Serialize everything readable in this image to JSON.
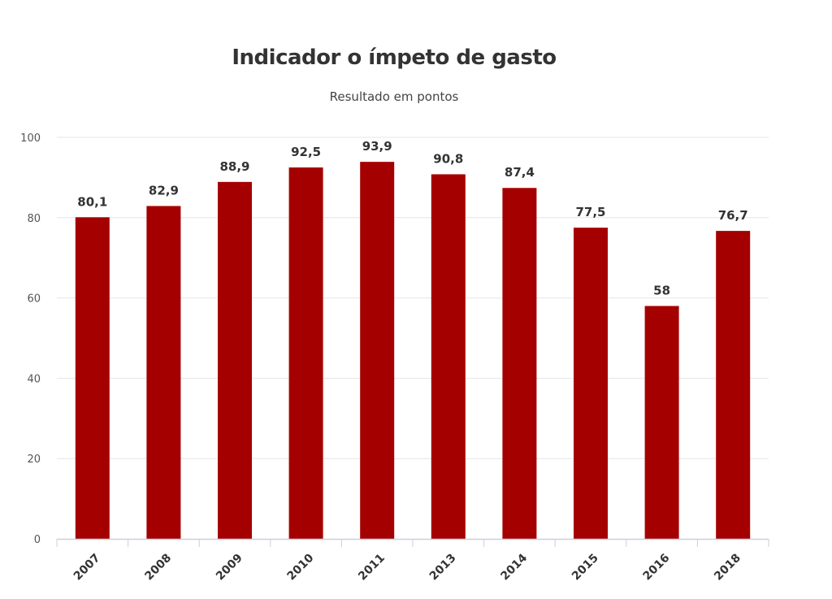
{
  "chart_data": {
    "type": "bar",
    "title": "Indicador o ímpeto de gasto",
    "subtitle": "Resultado em pontos",
    "categories": [
      "2007",
      "2008",
      "2009",
      "2010",
      "2011",
      "2013",
      "2014",
      "2015",
      "2016",
      "2018"
    ],
    "values": [
      80.1,
      82.9,
      88.9,
      92.5,
      93.9,
      90.8,
      87.4,
      77.5,
      58,
      76.7
    ],
    "value_labels": [
      "80,1",
      "82,9",
      "88,9",
      "92,5",
      "93,9",
      "90,8",
      "87,4",
      "77,5",
      "58",
      "76,7"
    ],
    "y_ticks": [
      0,
      20,
      40,
      60,
      80,
      100
    ],
    "ylim": [
      0,
      100
    ],
    "grid": true,
    "legend": "none",
    "bar_color": "#a50000",
    "grid_color": "#e6e6e6",
    "axis_color": "#c8cfe0"
  }
}
